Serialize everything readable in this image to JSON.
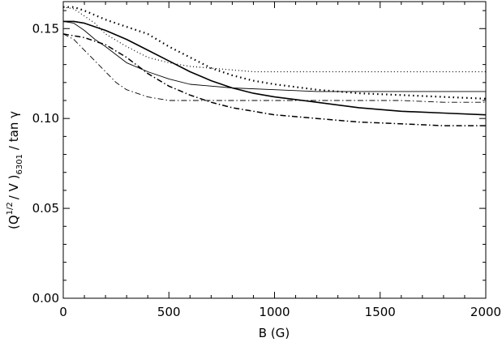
{
  "chart_data": {
    "type": "line",
    "title": "",
    "xlabel": "B (G)",
    "ylabel": {
      "prefix": "(Q",
      "exp": "1/2",
      "middle": "/ V )",
      "sub": "6301",
      "suffix": "/ tan γ"
    },
    "xlim": [
      0,
      2000
    ],
    "ylim": [
      0.0,
      0.165
    ],
    "xticks": [
      0,
      500,
      1000,
      1500,
      2000
    ],
    "xtick_labels": [
      "0",
      "500",
      "1000",
      "1500",
      "2000"
    ],
    "yticks": [
      0.0,
      0.05,
      0.1,
      0.15
    ],
    "ytick_labels": [
      "0.00",
      "0.05",
      "0.10",
      "0.15"
    ],
    "grid": false,
    "series": [
      {
        "style": "dotted-thick",
        "x": [
          0,
          50,
          100,
          200,
          300,
          400,
          500,
          600,
          700,
          800,
          900,
          1000,
          1200,
          1400,
          1600,
          1800,
          2000
        ],
        "y": [
          0.162,
          0.162,
          0.16,
          0.155,
          0.151,
          0.147,
          0.14,
          0.134,
          0.128,
          0.124,
          0.121,
          0.119,
          0.116,
          0.114,
          0.113,
          0.112,
          0.111
        ]
      },
      {
        "style": "dotted-thin",
        "x": [
          0,
          50,
          100,
          150,
          200,
          300,
          400,
          500,
          600,
          700,
          800,
          900,
          1000,
          1200,
          1400,
          1600,
          1800,
          2000
        ],
        "y": [
          0.162,
          0.161,
          0.157,
          0.153,
          0.147,
          0.14,
          0.134,
          0.131,
          0.129,
          0.128,
          0.127,
          0.126,
          0.126,
          0.126,
          0.126,
          0.126,
          0.126,
          0.126
        ]
      },
      {
        "style": "solid-thick",
        "x": [
          0,
          50,
          100,
          200,
          300,
          400,
          500,
          600,
          700,
          800,
          900,
          1000,
          1200,
          1400,
          1600,
          1800,
          2000
        ],
        "y": [
          0.154,
          0.154,
          0.153,
          0.149,
          0.144,
          0.138,
          0.132,
          0.126,
          0.121,
          0.117,
          0.114,
          0.112,
          0.109,
          0.106,
          0.104,
          0.103,
          0.102
        ]
      },
      {
        "style": "solid-thin",
        "x": [
          0,
          50,
          100,
          150,
          200,
          300,
          400,
          500,
          600,
          800,
          1000,
          1200,
          1400,
          1600,
          1800,
          2000
        ],
        "y": [
          0.154,
          0.153,
          0.149,
          0.144,
          0.14,
          0.131,
          0.126,
          0.122,
          0.119,
          0.117,
          0.116,
          0.115,
          0.115,
          0.115,
          0.115,
          0.115
        ]
      },
      {
        "style": "dashdot-thick",
        "x": [
          0,
          50,
          100,
          200,
          300,
          400,
          500,
          600,
          700,
          800,
          900,
          1000,
          1200,
          1400,
          1600,
          1800,
          2000
        ],
        "y": [
          0.147,
          0.146,
          0.145,
          0.141,
          0.134,
          0.125,
          0.118,
          0.113,
          0.109,
          0.106,
          0.104,
          0.102,
          0.1,
          0.098,
          0.097,
          0.096,
          0.096
        ]
      },
      {
        "style": "dashdot-thin",
        "x": [
          0,
          50,
          100,
          150,
          200,
          250,
          300,
          400,
          500,
          600,
          800,
          1000,
          1200,
          1400,
          1600,
          1800,
          2000
        ],
        "y": [
          0.147,
          0.144,
          0.138,
          0.132,
          0.126,
          0.12,
          0.116,
          0.112,
          0.11,
          0.11,
          0.11,
          0.11,
          0.11,
          0.11,
          0.11,
          0.109,
          0.109
        ]
      }
    ]
  }
}
